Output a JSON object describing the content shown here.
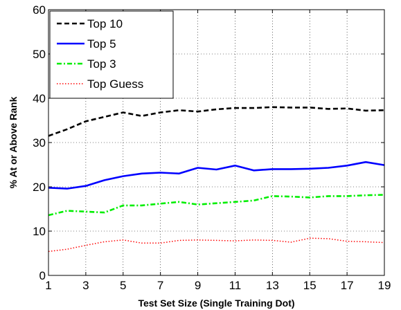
{
  "chart_data": {
    "type": "line",
    "title": "",
    "xlabel": "Test Set Size (Single Training Dot)",
    "ylabel": "% At or Above Rank",
    "xlim": [
      1,
      19
    ],
    "ylim": [
      0,
      60
    ],
    "xticks": [
      1,
      3,
      5,
      7,
      9,
      11,
      13,
      15,
      17,
      19
    ],
    "yticks": [
      0,
      10,
      20,
      30,
      40,
      50,
      60
    ],
    "grid": true,
    "legend_position": "top-left",
    "x": [
      1,
      2,
      3,
      4,
      5,
      6,
      7,
      8,
      9,
      10,
      11,
      12,
      13,
      14,
      15,
      16,
      17,
      18,
      19
    ],
    "series": [
      {
        "name": "Top 10",
        "color": "#000000",
        "style": "dashed",
        "values": [
          31.5,
          33.0,
          34.8,
          35.8,
          36.8,
          36.0,
          36.8,
          37.3,
          37.0,
          37.5,
          37.8,
          37.8,
          38.0,
          37.9,
          37.9,
          37.6,
          37.7,
          37.2,
          37.3
        ]
      },
      {
        "name": "Top 5",
        "color": "#0000ff",
        "style": "solid",
        "values": [
          19.8,
          19.6,
          20.2,
          21.5,
          22.4,
          23.0,
          23.2,
          23.0,
          24.3,
          23.9,
          24.8,
          23.7,
          24.0,
          24.0,
          24.1,
          24.3,
          24.8,
          25.6,
          24.9
        ]
      },
      {
        "name": "Top 3",
        "color": "#00ee00",
        "style": "dashdot",
        "values": [
          13.6,
          14.6,
          14.4,
          14.2,
          15.8,
          15.8,
          16.2,
          16.6,
          16.0,
          16.3,
          16.6,
          16.9,
          17.9,
          17.8,
          17.6,
          17.9,
          17.9,
          18.1,
          18.2
        ]
      },
      {
        "name": "Top Guess",
        "color": "#ff0000",
        "style": "dotted",
        "values": [
          5.4,
          5.9,
          6.8,
          7.6,
          8.0,
          7.3,
          7.3,
          7.9,
          8.0,
          7.9,
          7.8,
          8.0,
          7.9,
          7.5,
          8.4,
          8.3,
          7.7,
          7.6,
          7.4
        ]
      }
    ]
  }
}
